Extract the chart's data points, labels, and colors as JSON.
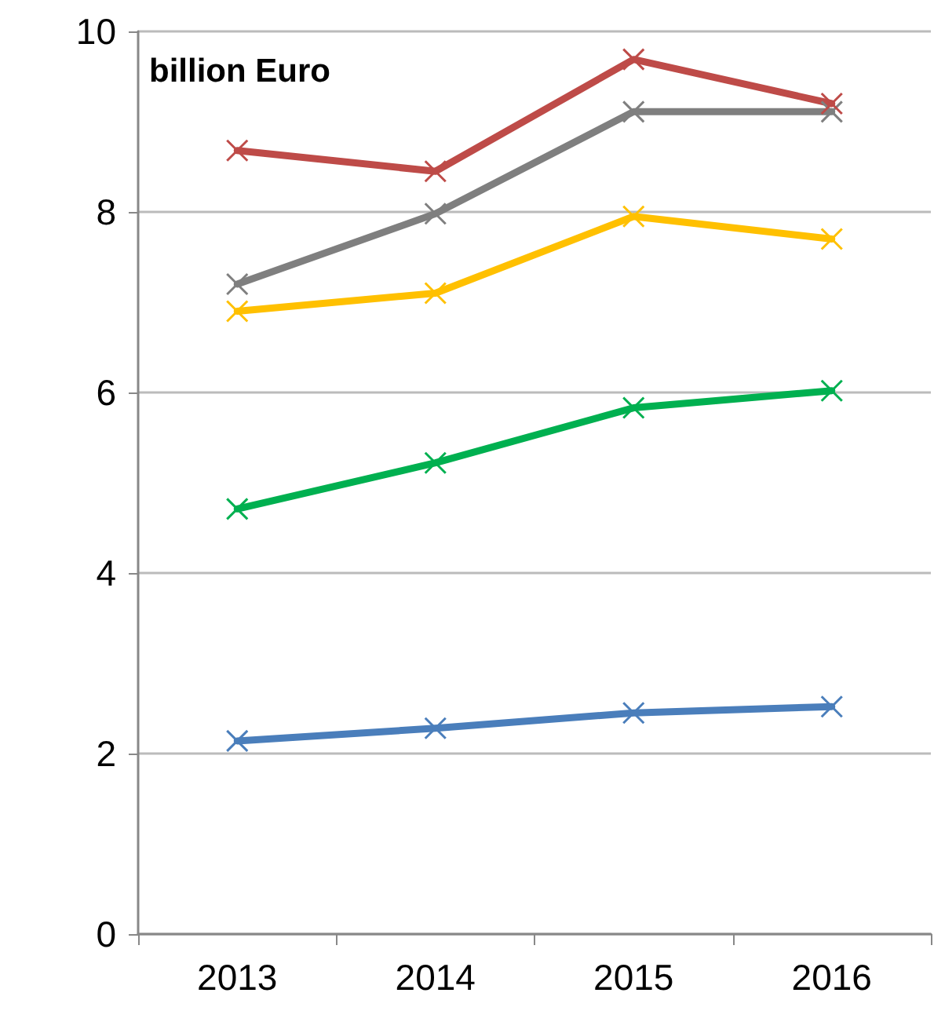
{
  "chart_data": {
    "type": "line",
    "annotations": [
      "billion Euro"
    ],
    "categories": [
      "2013",
      "2014",
      "2015",
      "2016"
    ],
    "series": [
      {
        "color": "#4a7ebb",
        "values": [
          2.14,
          2.28,
          2.45,
          2.52
        ]
      },
      {
        "color": "#00b050",
        "values": [
          4.71,
          5.22,
          5.83,
          6.02
        ]
      },
      {
        "color": "#ffc000",
        "values": [
          6.9,
          7.1,
          7.95,
          7.7
        ]
      },
      {
        "color": "#7f7f7f",
        "values": [
          7.2,
          7.98,
          9.11,
          9.11
        ]
      },
      {
        "color": "#be4b48",
        "values": [
          8.68,
          8.45,
          9.69,
          9.2
        ]
      }
    ],
    "ylim": [
      0,
      10
    ],
    "yticks": [
      0,
      2,
      4,
      6,
      8,
      10
    ],
    "grid": "y",
    "marker": "cross",
    "line_style": "solid"
  }
}
